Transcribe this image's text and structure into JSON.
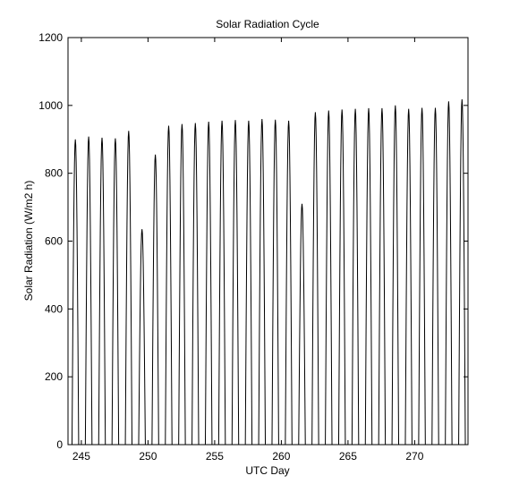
{
  "chart_data": {
    "type": "line",
    "title": "Solar Radiation Cycle",
    "xlabel": "UTC Day",
    "ylabel": "Solar Radiation (W/m2 h)",
    "xlim": [
      244,
      274
    ],
    "ylim": [
      0,
      1200
    ],
    "xticks": [
      245,
      250,
      255,
      260,
      265,
      270
    ],
    "yticks": [
      0,
      200,
      400,
      600,
      800,
      1000,
      1200
    ],
    "grid": false,
    "legend": "none",
    "line_color": "#000000",
    "daily_peaks": [
      {
        "day": 244,
        "peak": 900
      },
      {
        "day": 245,
        "peak": 908
      },
      {
        "day": 246,
        "peak": 905
      },
      {
        "day": 247,
        "peak": 903
      },
      {
        "day": 248,
        "peak": 925
      },
      {
        "day": 249,
        "peak": 635
      },
      {
        "day": 250,
        "peak": 855
      },
      {
        "day": 251,
        "peak": 940
      },
      {
        "day": 252,
        "peak": 945
      },
      {
        "day": 253,
        "peak": 948
      },
      {
        "day": 254,
        "peak": 952
      },
      {
        "day": 255,
        "peak": 955
      },
      {
        "day": 256,
        "peak": 957
      },
      {
        "day": 257,
        "peak": 955
      },
      {
        "day": 258,
        "peak": 960
      },
      {
        "day": 259,
        "peak": 958
      },
      {
        "day": 260,
        "peak": 955
      },
      {
        "day": 261,
        "peak": 710
      },
      {
        "day": 262,
        "peak": 980
      },
      {
        "day": 263,
        "peak": 985
      },
      {
        "day": 264,
        "peak": 988
      },
      {
        "day": 265,
        "peak": 990
      },
      {
        "day": 266,
        "peak": 992
      },
      {
        "day": 267,
        "peak": 992
      },
      {
        "day": 268,
        "peak": 1000
      },
      {
        "day": 269,
        "peak": 990
      },
      {
        "day": 270,
        "peak": 993
      },
      {
        "day": 271,
        "peak": 993
      },
      {
        "day": 272,
        "peak": 1012
      },
      {
        "day": 273,
        "peak": 1018
      }
    ]
  }
}
